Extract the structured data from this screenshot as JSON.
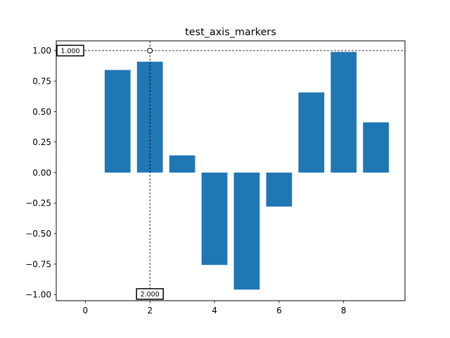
{
  "chart_data": {
    "type": "bar",
    "title": "test_axis_markers",
    "xlabel": "",
    "ylabel": "",
    "x": [
      0,
      1,
      2,
      3,
      4,
      5,
      6,
      7,
      8,
      9
    ],
    "values": [
      0.0,
      0.841,
      0.909,
      0.141,
      -0.757,
      -0.959,
      -0.279,
      0.657,
      0.989,
      0.412
    ],
    "xlim": [
      -0.9,
      9.9
    ],
    "ylim": [
      -1.05,
      1.08
    ],
    "xticks": [
      0,
      2,
      4,
      6,
      8
    ],
    "yticks": [
      -1.0,
      -0.75,
      -0.5,
      -0.25,
      0.0,
      0.25,
      0.5,
      0.75,
      1.0
    ],
    "xtick_labels": [
      "0",
      "2",
      "4",
      "6",
      "8"
    ],
    "ytick_labels": [
      "−1.00",
      "−0.75",
      "−0.50",
      "−0.25",
      "0.00",
      "0.25",
      "0.50",
      "0.75",
      "1.00"
    ],
    "bar_color": "#1f77b4",
    "grid": false,
    "markers": {
      "x_value": 2,
      "y_value": 1.0,
      "x_label": "2.000",
      "y_label": "1.000"
    }
  }
}
